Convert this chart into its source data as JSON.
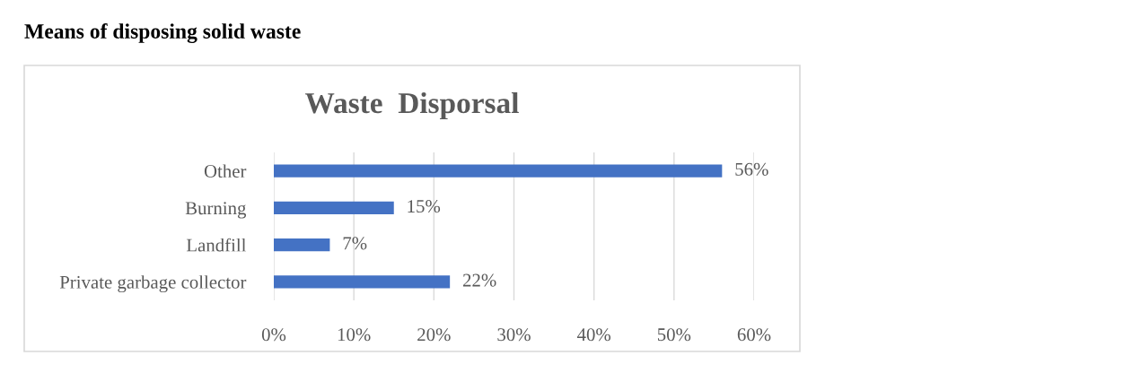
{
  "chart_data": {
    "type": "bar",
    "orientation": "horizontal",
    "title": "Means of disposing solid waste",
    "subtitle": "Waste  Disporsal",
    "categories": [
      "Other",
      "Burning",
      "Landfill",
      "Private garbage collector"
    ],
    "values": [
      56,
      15,
      7,
      22
    ],
    "value_labels": [
      "56%",
      "15%",
      "7%",
      "22%"
    ],
    "color": "#4472c4",
    "xlim": [
      0,
      60
    ],
    "xticks": [
      {
        "value": 0,
        "label": "0%"
      },
      {
        "value": 10,
        "label": "10%"
      },
      {
        "value": 20,
        "label": "20%"
      },
      {
        "value": 30,
        "label": "30%"
      },
      {
        "value": 40,
        "label": "40%"
      },
      {
        "value": 50,
        "label": "50%"
      },
      {
        "value": 60,
        "label": "60%"
      }
    ],
    "grid": "x"
  }
}
